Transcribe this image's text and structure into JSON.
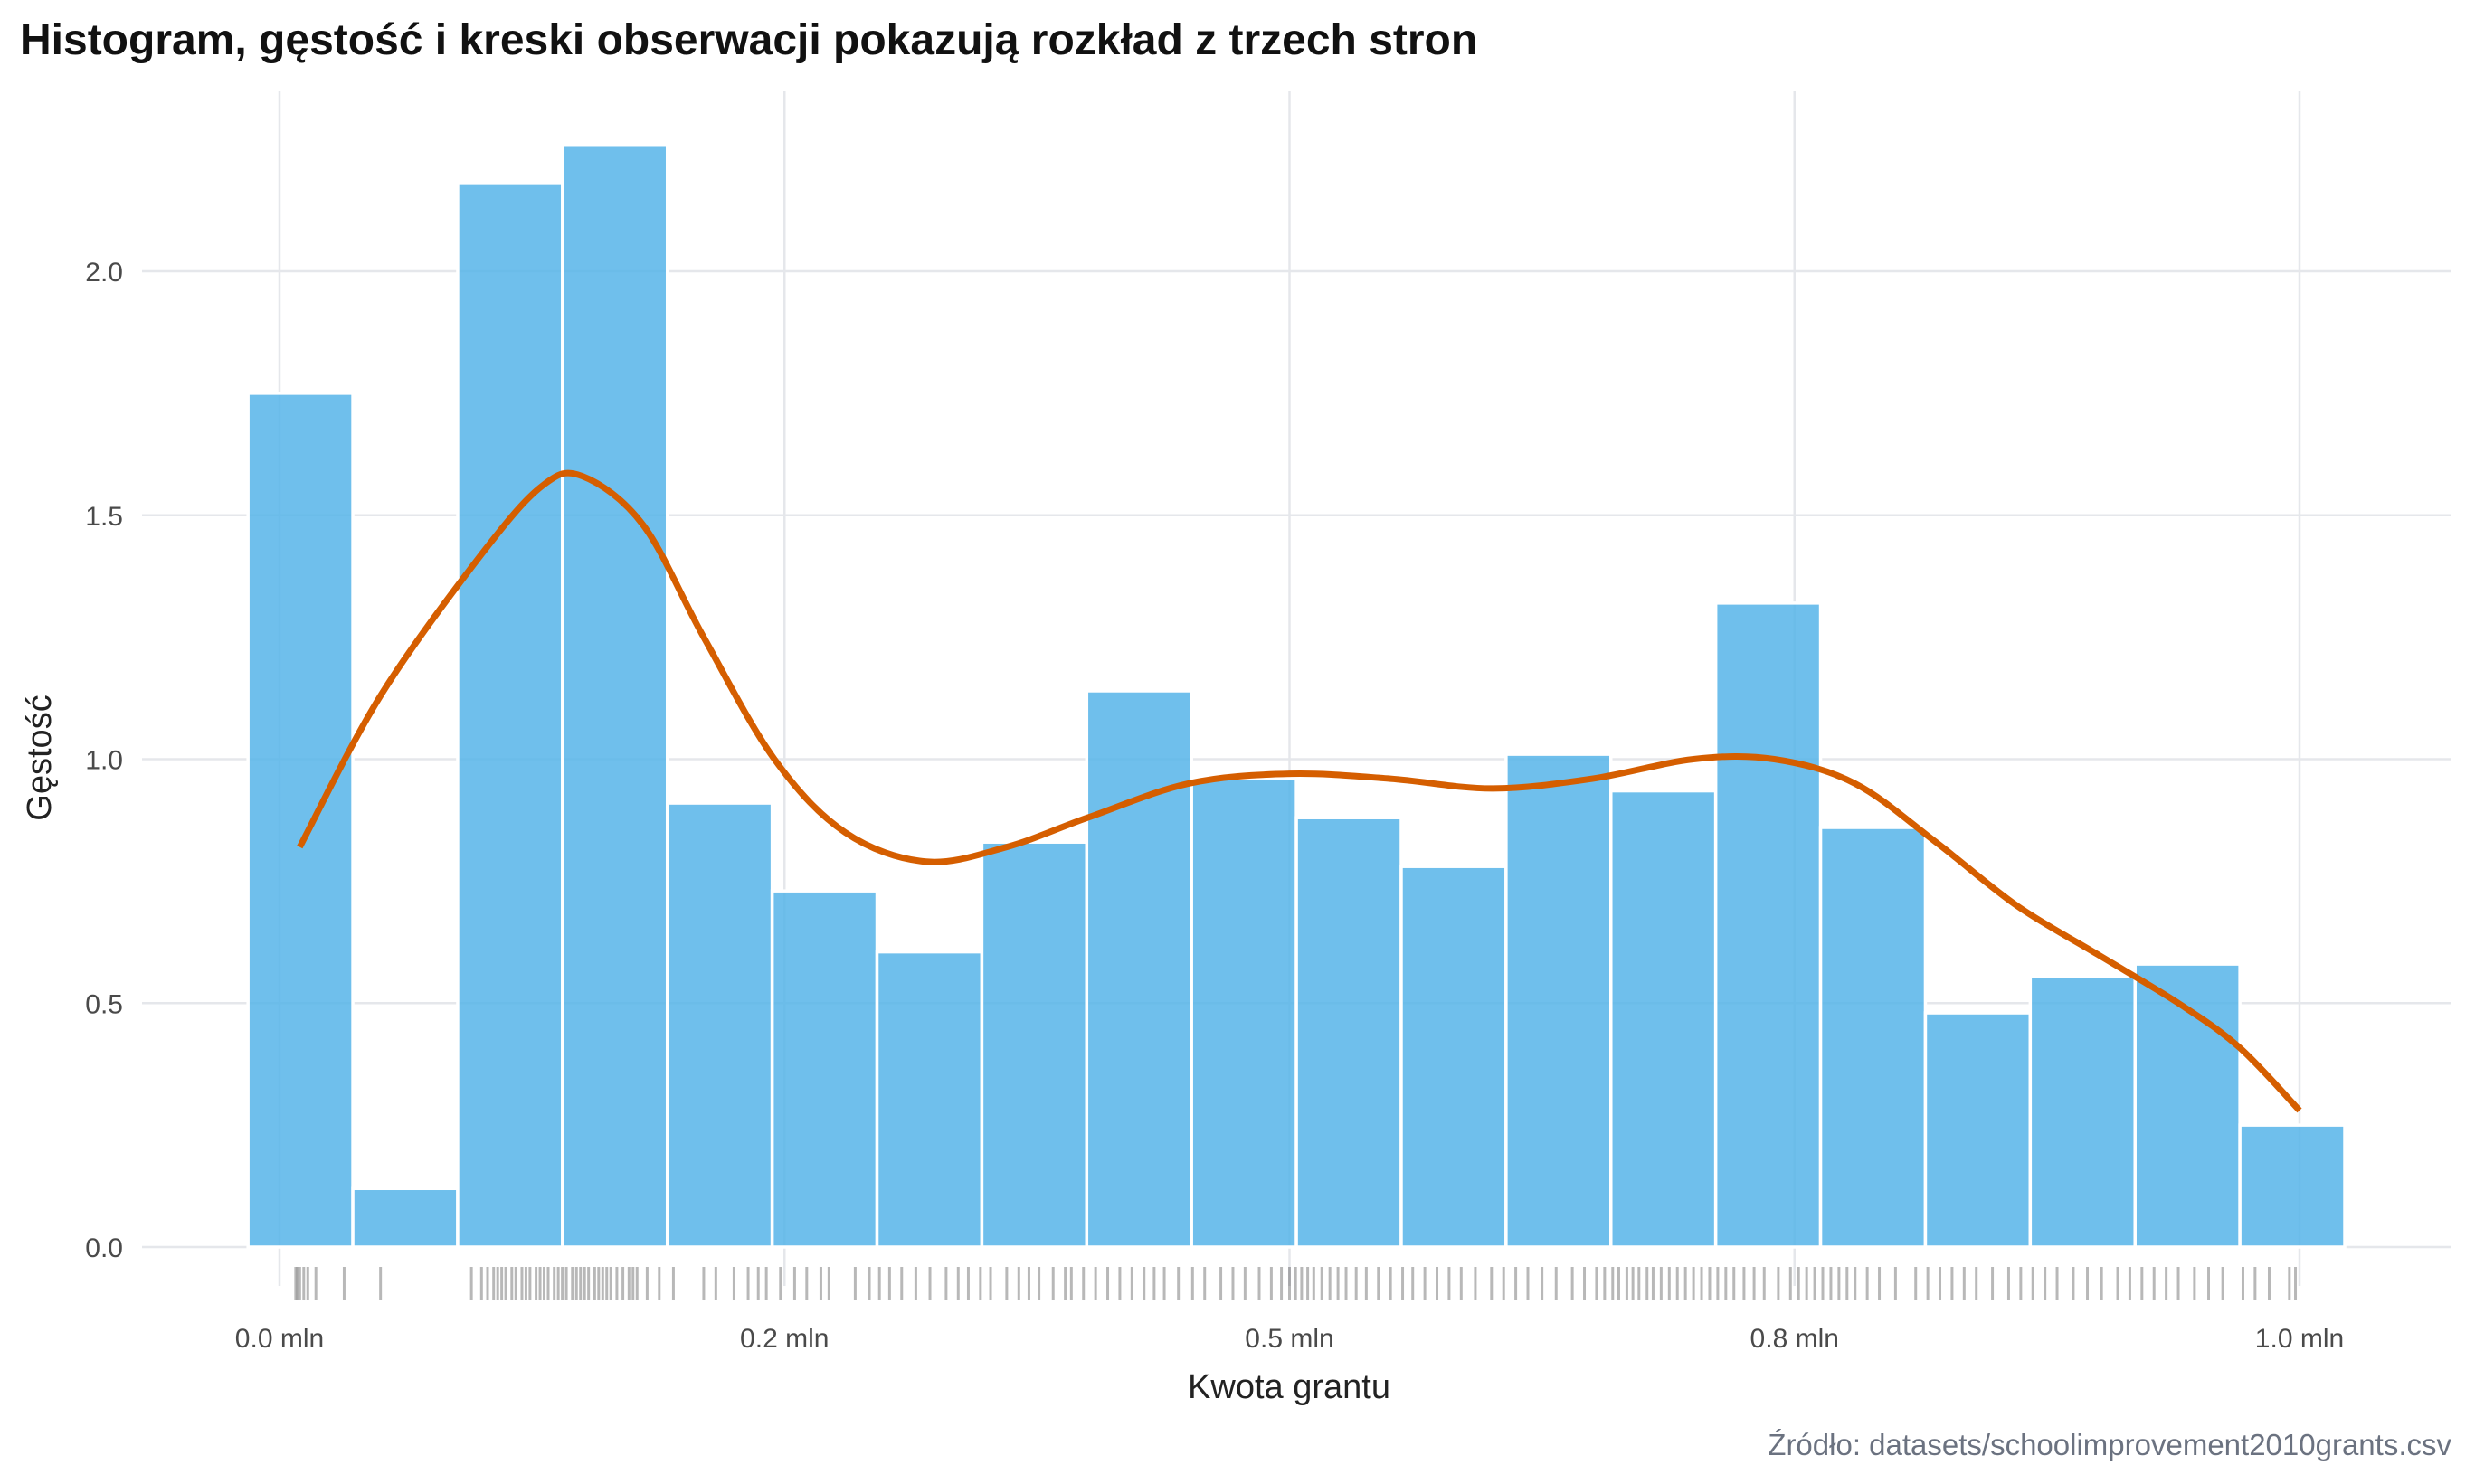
{
  "chart_data": {
    "type": "histogram",
    "title": "Histogram, gęstość i kreski obserwacji pokazują rozkład z trzech stron",
    "xlabel": "Kwota grantu",
    "ylabel": "Gęstość",
    "caption": "Źródło: datasets/schoolimprovement2010grants.csv",
    "xlim": [
      -0.0156,
      1.023
    ],
    "ylim": [
      0,
      2.3
    ],
    "grid": true,
    "x_ticks": [
      {
        "value": 0.0,
        "label": "0.0 mln"
      },
      {
        "value": 0.25,
        "label": "0.2 mln"
      },
      {
        "value": 0.5,
        "label": "0.5 mln"
      },
      {
        "value": 0.75,
        "label": "0.8 mln"
      },
      {
        "value": 1.0,
        "label": "1.0 mln"
      }
    ],
    "y_ticks": [
      {
        "value": 0.0,
        "label": "0.0"
      },
      {
        "value": 0.5,
        "label": "0.5"
      },
      {
        "value": 1.0,
        "label": "1.0"
      },
      {
        "value": 1.5,
        "label": "1.5"
      },
      {
        "value": 2.0,
        "label": "2.0"
      }
    ],
    "histogram": {
      "bin_start": -0.0156,
      "bin_width": 0.0519,
      "values": [
        1.75,
        0.12,
        2.18,
        2.26,
        0.91,
        0.73,
        0.605,
        0.83,
        1.14,
        0.96,
        0.88,
        0.78,
        1.01,
        0.935,
        1.32,
        0.86,
        0.48,
        0.555,
        0.58,
        0.25
      ],
      "color": "#56B4E9"
    },
    "density": {
      "color": "#D55E00",
      "x": [
        0.01,
        0.05,
        0.1,
        0.13,
        0.15,
        0.18,
        0.21,
        0.245,
        0.28,
        0.32,
        0.36,
        0.4,
        0.45,
        0.5,
        0.55,
        0.6,
        0.65,
        0.7,
        0.74,
        0.78,
        0.82,
        0.86,
        0.9,
        0.94,
        0.97,
        1.0
      ],
      "y": [
        0.82,
        1.13,
        1.42,
        1.56,
        1.58,
        1.48,
        1.25,
        1.0,
        0.85,
        0.79,
        0.82,
        0.88,
        0.95,
        0.97,
        0.96,
        0.94,
        0.96,
        1.0,
        1.0,
        0.95,
        0.83,
        0.7,
        0.6,
        0.5,
        0.41,
        0.28
      ]
    },
    "rug": [
      0.008,
      0.009,
      0.01,
      0.012,
      0.014,
      0.018,
      0.032,
      0.05,
      0.095,
      0.1,
      0.103,
      0.106,
      0.108,
      0.11,
      0.112,
      0.115,
      0.117,
      0.12,
      0.122,
      0.124,
      0.127,
      0.129,
      0.131,
      0.133,
      0.136,
      0.138,
      0.14,
      0.142,
      0.145,
      0.147,
      0.149,
      0.151,
      0.153,
      0.156,
      0.158,
      0.16,
      0.162,
      0.164,
      0.167,
      0.17,
      0.173,
      0.175,
      0.177,
      0.182,
      0.188,
      0.195,
      0.21,
      0.216,
      0.225,
      0.232,
      0.237,
      0.241,
      0.248,
      0.255,
      0.261,
      0.268,
      0.272,
      0.285,
      0.292,
      0.297,
      0.302,
      0.308,
      0.315,
      0.322,
      0.33,
      0.336,
      0.341,
      0.347,
      0.352,
      0.36,
      0.366,
      0.371,
      0.376,
      0.383,
      0.389,
      0.392,
      0.398,
      0.404,
      0.41,
      0.416,
      0.422,
      0.428,
      0.433,
      0.438,
      0.445,
      0.452,
      0.458,
      0.466,
      0.472,
      0.478,
      0.485,
      0.491,
      0.496,
      0.5,
      0.503,
      0.506,
      0.509,
      0.512,
      0.516,
      0.52,
      0.524,
      0.528,
      0.533,
      0.538,
      0.544,
      0.55,
      0.556,
      0.561,
      0.567,
      0.573,
      0.579,
      0.585,
      0.592,
      0.6,
      0.606,
      0.612,
      0.618,
      0.625,
      0.632,
      0.64,
      0.646,
      0.652,
      0.656,
      0.66,
      0.663,
      0.667,
      0.67,
      0.673,
      0.677,
      0.68,
      0.684,
      0.688,
      0.692,
      0.696,
      0.7,
      0.704,
      0.708,
      0.712,
      0.716,
      0.72,
      0.725,
      0.73,
      0.735,
      0.742,
      0.748,
      0.752,
      0.756,
      0.76,
      0.764,
      0.768,
      0.772,
      0.776,
      0.78,
      0.786,
      0.792,
      0.8,
      0.81,
      0.816,
      0.822,
      0.828,
      0.834,
      0.84,
      0.848,
      0.856,
      0.862,
      0.868,
      0.874,
      0.88,
      0.888,
      0.895,
      0.902,
      0.91,
      0.916,
      0.922,
      0.928,
      0.934,
      0.94,
      0.948,
      0.955,
      0.962,
      0.972,
      0.978,
      0.985,
      0.995,
      0.998
    ]
  }
}
